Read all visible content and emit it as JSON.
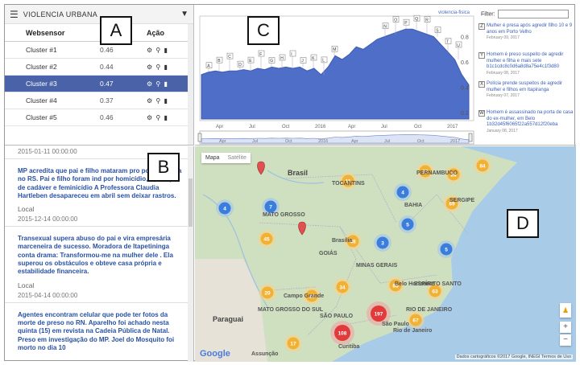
{
  "panel_a": {
    "title": "VIOLENCIA URBANA",
    "columns": [
      "Websensor",
      "",
      "Ação"
    ],
    "rows": [
      {
        "name": "Cluster #1",
        "value": "0.46",
        "selected": false
      },
      {
        "name": "Cluster #2",
        "value": "0.44",
        "selected": false
      },
      {
        "name": "Cluster #3",
        "value": "0.47",
        "selected": true
      },
      {
        "name": "Cluster #4",
        "value": "0.37",
        "selected": false
      },
      {
        "name": "Cluster #5",
        "value": "0.46",
        "selected": false
      }
    ],
    "action_icons": "⚙ ⚲ ▮"
  },
  "panel_b": {
    "top_date": "2015-01-11 00:00:00",
    "items": [
      {
        "text": "MP acredita que pai e filho mataram pro por vingança no RS. Pai e filho foram ind por homicídio, ocultação de cadáver e feminicídio A Professora Claudia Hartleben desapareceu em abril sem deixar rastros.",
        "loc": "Local",
        "date": "2015-12-14 00:00:00"
      },
      {
        "text": "Transexual supera abuso do pai e vira empresária marceneira de sucesso. Moradora de Itapetininga conta drama: Transformou-me na mulher dele . Ela superou os obstáculos e obteve casa própria e estabilidade financeira.",
        "loc": "Local",
        "date": "2015-04-14 00:00:00"
      },
      {
        "text": "Agentes encontram celular que pode ter fotos da morte de preso no RN. Aparelho foi achado nesta quinta (15) em revista na Cadeia Pública de Natal. Preso em investigação do MP. Joel do Mosquito foi morto no dia 10",
        "loc": "",
        "date": ""
      }
    ]
  },
  "panel_c": {
    "legend": "violencia-fisica",
    "filter_label": "Filter:",
    "chart_data": {
      "type": "area",
      "x_ticks": [
        "Apr",
        "Jul",
        "Oct",
        "2016",
        "Apr",
        "Jul",
        "Oct",
        "2017"
      ],
      "y_ticks": [
        "0.8",
        "0.6",
        "0.4",
        "0.2"
      ],
      "nav_ticks": [
        "Apr",
        "Jul",
        "Oct",
        "2016",
        "Apr",
        "Jul",
        "Oct",
        "2017"
      ],
      "values": [
        0.5,
        0.52,
        0.53,
        0.52,
        0.53,
        0.53,
        0.54,
        0.53,
        0.55,
        0.54,
        0.56,
        0.55,
        0.56,
        0.55,
        0.56,
        0.53,
        0.55,
        0.5,
        0.56,
        0.65,
        0.62,
        0.66,
        0.72,
        0.7,
        0.74,
        0.78,
        0.8,
        0.82,
        0.84,
        0.86,
        0.86,
        0.84,
        0.82,
        0.8,
        0.74,
        0.68,
        0.62,
        0.5,
        0.42
      ]
    },
    "annotations": [
      {
        "letter": "Z",
        "text": "Mulher é presa após agredir filho 10 e 9 anos em Porto Velho",
        "date": "February 09, 2017"
      },
      {
        "letter": "Y",
        "text": "Homem é preso suspeito de agredir mulher e filha e mais sete b1c1cdc8c0d6a8d8a75e4c1f3d80",
        "date": "February 08, 2017"
      },
      {
        "letter": "X",
        "text": "Polícia prende suspeitos de agredir mulher e filhos em Itapiranga",
        "date": "February 07, 2017"
      },
      {
        "letter": "W",
        "text": "Homem é assassinado na porta de casa do ex-mulher, em Belo 1b32d45f6065f22a557d12f20eba",
        "date": "January 08, 2017"
      }
    ]
  },
  "panel_d": {
    "tab_map": "Mapa",
    "tab_sat": "Satélite",
    "google": "Google",
    "copyright": "Dados cartográficos ©2017 Google, INEGI   Termos de Uso",
    "labels": [
      {
        "t": "Brasil",
        "big": true
      },
      {
        "t": "TOCANTINS"
      },
      {
        "t": "BAHIA"
      },
      {
        "t": "PERNAMBUCO"
      },
      {
        "t": "SERGIPE"
      },
      {
        "t": "MATO GROSSO"
      },
      {
        "t": "GOIÁS"
      },
      {
        "t": "Brasília"
      },
      {
        "t": "MINAS GERAIS"
      },
      {
        "t": "Belo Horizonte"
      },
      {
        "t": "ESPÍRITO SANTO"
      },
      {
        "t": "Campo Grande"
      },
      {
        "t": "MATO GROSSO DO SUL"
      },
      {
        "t": "SÃO PAULO"
      },
      {
        "t": "RIO DE JANEIRO"
      },
      {
        "t": "Rio de Janeiro"
      },
      {
        "t": "São Paulo"
      },
      {
        "t": "Paraguai",
        "big": true
      },
      {
        "t": "Curitiba"
      },
      {
        "t": "Assunção"
      }
    ],
    "clusters": [
      {
        "n": "11",
        "c": "orange"
      },
      {
        "n": "13",
        "c": "orange"
      },
      {
        "n": "84",
        "c": "orange"
      },
      {
        "n": "26",
        "c": "orange"
      },
      {
        "n": "4",
        "c": "blue"
      },
      {
        "n": "7",
        "c": "blue"
      },
      {
        "n": "69",
        "c": "orange"
      },
      {
        "n": "4",
        "c": "blue"
      },
      {
        "n": "5",
        "c": "blue"
      },
      {
        "n": "45",
        "c": "orange"
      },
      {
        "n": "48",
        "c": "orange"
      },
      {
        "n": "3",
        "c": "blue"
      },
      {
        "n": "5",
        "c": "blue"
      },
      {
        "n": "20",
        "c": "orange"
      },
      {
        "n": "34",
        "c": "orange"
      },
      {
        "n": "85",
        "c": "orange"
      },
      {
        "n": "28",
        "c": "orange"
      },
      {
        "n": "63",
        "c": "orange"
      },
      {
        "n": "197",
        "c": "red"
      },
      {
        "n": "67",
        "c": "orange"
      },
      {
        "n": "108",
        "c": "red"
      },
      {
        "n": "17",
        "c": "orange"
      }
    ]
  },
  "panel_labels": [
    "A",
    "B",
    "C",
    "D"
  ]
}
